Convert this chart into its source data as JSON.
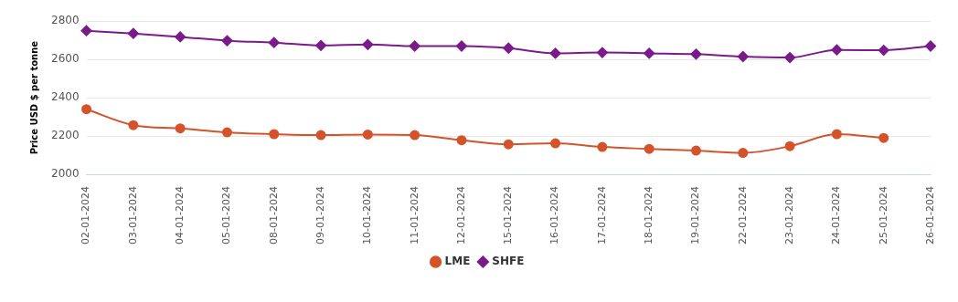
{
  "chart_data": {
    "type": "line",
    "ylabel": "Price USD $ per tonne",
    "categories": [
      "02-01-2024",
      "03-01-2024",
      "04-01-2024",
      "05-01-2024",
      "08-01-2024",
      "09-01-2024",
      "10-01-2024",
      "11-01-2024",
      "12-01-2024",
      "15-01-2024",
      "16-01-2024",
      "17-01-2024",
      "18-01-2024",
      "19-01-2024",
      "22-01-2024",
      "23-01-2024",
      "24-01-2024",
      "25-01-2024",
      "26-01-2024"
    ],
    "series": [
      {
        "name": "LME",
        "color": "#d4532a",
        "marker": "circle",
        "values": [
          2340,
          2257,
          2240,
          2219,
          2210,
          2205,
          2208,
          2205,
          2178,
          2157,
          2162,
          2143,
          2133,
          2124,
          2112,
          2147,
          2210,
          2190,
          null
        ]
      },
      {
        "name": "SHFE",
        "color": "#7b1a8b",
        "marker": "diamond",
        "values": [
          2750,
          2736,
          2718,
          2698,
          2688,
          2673,
          2678,
          2670,
          2670,
          2659,
          2632,
          2636,
          2632,
          2628,
          2615,
          2610,
          2650,
          2648,
          2670
        ]
      }
    ],
    "ylim": [
      2000,
      2800
    ],
    "yticks": [
      2000,
      2200,
      2400,
      2600,
      2800
    ],
    "grid": "y",
    "legend": "bottom"
  }
}
